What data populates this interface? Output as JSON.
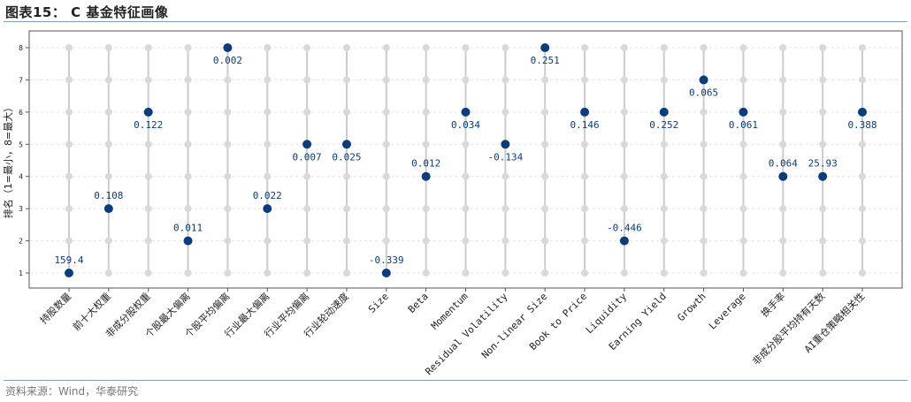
{
  "figure": {
    "title": "图表15： C 基金特征画像",
    "source": "资料来源：Wind，华泰研究"
  },
  "colors": {
    "highlight": "#0b3c7d",
    "background_dot": "#d9d9d9",
    "stem": "#cccccc",
    "label": "#0b3c7d",
    "rule": "#7f9fbf"
  },
  "chart_data": {
    "type": "scatter",
    "title": "",
    "xlabel": "",
    "ylabel": "排名（1=最小，8=最大）",
    "ylim": [
      1,
      8
    ],
    "yticks": [
      1,
      2,
      3,
      4,
      5,
      6,
      7,
      8
    ],
    "grid": true,
    "categories": [
      "持股数量",
      "前十大权重",
      "非成分股权重",
      "个股最大偏离",
      "个股平均偏离",
      "行业最大偏离",
      "行业平均偏离",
      "行业轮动速度",
      "Size",
      "Beta",
      "Momentum",
      "Residual Volatility",
      "Non-linear Size",
      "Book to Price",
      "Liquidity",
      "Earning Yield",
      "Growth",
      "Leverage",
      "换手率",
      "非成分股平均持有天数",
      "AI重仓策略相关性"
    ],
    "ranks": [
      1,
      3,
      6,
      2,
      8,
      3,
      5,
      5,
      1,
      4,
      6,
      5,
      8,
      6,
      2,
      6,
      7,
      6,
      4,
      4,
      6
    ],
    "value_labels": [
      "159.4",
      "0.108",
      "0.122",
      "0.011",
      "0.002",
      "0.022",
      "0.007",
      "0.025",
      "-0.339",
      "0.012",
      "0.034",
      "-0.134",
      "0.251",
      "0.146",
      "-0.446",
      "0.252",
      "0.065",
      "0.061",
      "0.064",
      "25.93",
      "0.388"
    ]
  }
}
